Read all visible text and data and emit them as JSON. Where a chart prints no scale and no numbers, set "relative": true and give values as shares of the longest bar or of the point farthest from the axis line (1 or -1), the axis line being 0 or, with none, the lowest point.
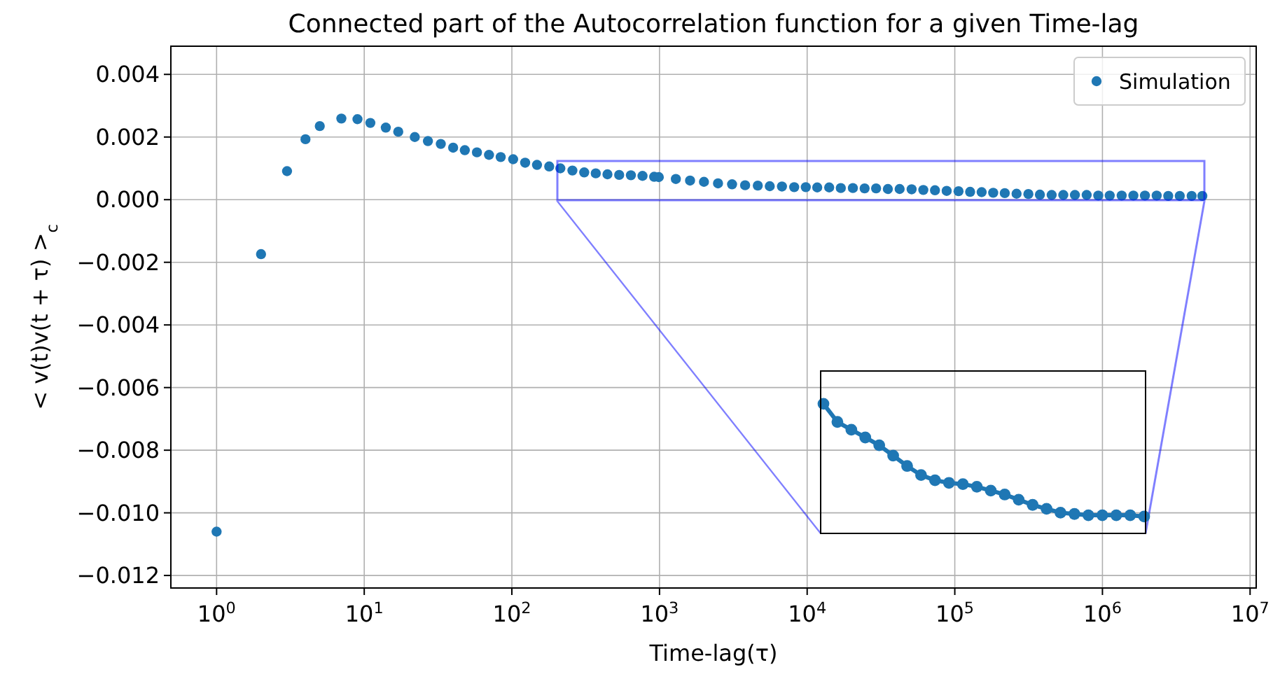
{
  "chart_data": [
    {
      "type": "scatter",
      "title": "Connected part of the Autocorrelation function for a given Time-lag",
      "xlabel": "Time-lag(τ)",
      "ylabel": "< v(t)v(t + τ) >$_{c}$",
      "log": "x",
      "grid": true,
      "legend": "top right",
      "marker": "circle",
      "xlim": [
        0.49,
        11000000
      ],
      "ylim": [
        -0.0124,
        0.0049
      ],
      "xticks": [
        {
          "value": 1,
          "label": "10$^{0}$"
        },
        {
          "value": 10,
          "label": "10$^{1}$"
        },
        {
          "value": 100,
          "label": "10$^{2}$"
        },
        {
          "value": 1000,
          "label": "10$^{3}$"
        },
        {
          "value": 10000,
          "label": "10$^{4}$"
        },
        {
          "value": 100000,
          "label": "10$^{5}$"
        },
        {
          "value": 1000000,
          "label": "10$^{6}$"
        },
        {
          "value": 10000000,
          "label": "10$^{7}$"
        }
      ],
      "yticks": [
        {
          "value": -0.012,
          "label": "−0.012"
        },
        {
          "value": -0.01,
          "label": "−0.010"
        },
        {
          "value": -0.008,
          "label": "−0.008"
        },
        {
          "value": -0.006,
          "label": "−0.006"
        },
        {
          "value": -0.004,
          "label": "−0.004"
        },
        {
          "value": -0.002,
          "label": "−0.002"
        },
        {
          "value": 0,
          "label": "0.000"
        },
        {
          "value": 0.002,
          "label": "0.002"
        },
        {
          "value": 0.004,
          "label": "0.004"
        }
      ],
      "series": [
        {
          "name": "Simulation",
          "color": "#1f77b4",
          "x": [
            1,
            2,
            3,
            4,
            5,
            7,
            9,
            11,
            14,
            17,
            22,
            27,
            33,
            40,
            48,
            58,
            70,
            84,
            102,
            123,
            148,
            179,
            213,
            257,
            309,
            370,
            444,
            533,
            640,
            767,
            920,
            989,
            1290,
            1610,
            2000,
            2490,
            3100,
            3800,
            4630,
            5580,
            6750,
            8170,
            9790,
            11700,
            14100,
            16900,
            20400,
            24500,
            29300,
            35200,
            42300,
            51000,
            61200,
            73400,
            88100,
            106000,
            127000,
            152000,
            182000,
            218000,
            262000,
            315000,
            377000,
            453000,
            543000,
            651000,
            782000,
            937000,
            1120000,
            1350000,
            1620000,
            1940000,
            2330000,
            2790000,
            3340000,
            4020000,
            4750000
          ],
          "values": [
            -0.0106,
            -0.00174,
            0.00091,
            0.00193,
            0.00235,
            0.00259,
            0.00257,
            0.00245,
            0.0023,
            0.00217,
            0.002,
            0.00187,
            0.00178,
            0.00166,
            0.00158,
            0.00151,
            0.00143,
            0.00136,
            0.00129,
            0.00118,
            0.00111,
            0.00106,
            0.001,
            0.00093,
            0.00087,
            0.00084,
            0.00081,
            0.00079,
            0.00078,
            0.00076,
            0.00073,
            0.00072,
            0.00066,
            0.00061,
            0.00057,
            0.00052,
            0.00049,
            0.00046,
            0.00045,
            0.00043,
            0.00042,
            0.0004,
            0.0004,
            0.00039,
            0.00039,
            0.00037,
            0.00037,
            0.00036,
            0.00036,
            0.00034,
            0.00034,
            0.00033,
            0.00031,
            0.0003,
            0.00028,
            0.00027,
            0.00025,
            0.00024,
            0.00022,
            0.00021,
            0.00019,
            0.00018,
            0.00016,
            0.00015,
            0.00015,
            0.00015,
            0.00015,
            0.00013,
            0.00013,
            0.00013,
            0.00013,
            0.00013,
            0.00013,
            0.00012,
            0.00012,
            0.00012,
            0.00012
          ]
        }
      ]
    },
    {
      "type": "line",
      "relative": true,
      "marker": "circle",
      "categories": [
        null,
        null,
        null,
        null,
        null,
        null,
        null,
        null,
        null,
        null,
        null,
        null,
        null,
        null,
        null,
        null,
        null,
        null,
        null,
        null,
        null,
        null,
        null,
        null
      ],
      "series": [
        {
          "color": "#1f77b4",
          "values": [
            1,
            0.86,
            0.8,
            0.74,
            0.68,
            0.6,
            0.52,
            0.45,
            0.41,
            0.39,
            0.38,
            0.36,
            0.33,
            0.3,
            0.26,
            0.22,
            0.19,
            0.16,
            0.15,
            0.14,
            0.14,
            0.14,
            0.14,
            0.13
          ]
        }
      ]
    }
  ]
}
